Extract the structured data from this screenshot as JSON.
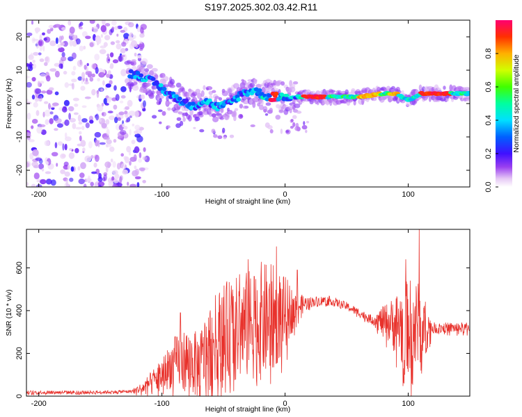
{
  "title": "S197.2025.302.03.42.R11",
  "chart_data": [
    {
      "type": "heatmap",
      "name": "spectrogram",
      "xlabel": "Height of straight line (km)",
      "ylabel": "Frequency (Hz)",
      "xlim": [
        -210,
        150
      ],
      "ylim": [
        -25,
        25
      ],
      "x_ticks": [
        "-200",
        "-100",
        "0",
        "100"
      ],
      "x_tick_values": [
        -200,
        -100,
        0,
        100
      ],
      "y_ticks": [
        "-20",
        "-10",
        "0",
        "10",
        "20"
      ],
      "y_tick_values": [
        -20,
        -10,
        0,
        10,
        20
      ],
      "colorbar": {
        "label": "Normalized spectral amplitude",
        "range": [
          0,
          1
        ],
        "ticks": [
          "0.0",
          "0.2",
          "0.4",
          "0.6",
          "0.8"
        ],
        "tick_values": [
          0.0,
          0.2,
          0.4,
          0.6,
          0.8
        ],
        "colormap": "rainbow (magenta-blue-cyan-green-yellow-red)"
      },
      "ridge_frequency": {
        "x": [
          -125,
          -115,
          -105,
          -95,
          -85,
          -75,
          -65,
          -55,
          -45,
          -35,
          -25,
          -15,
          -5,
          5,
          20,
          40,
          60,
          80,
          90,
          100,
          110,
          130,
          150
        ],
        "y": [
          9,
          8,
          6,
          3,
          1,
          -1,
          1,
          -1,
          0,
          3,
          4,
          2,
          2,
          2,
          2,
          2,
          2,
          3,
          3,
          1,
          3,
          3,
          3
        ]
      },
      "noise_region_x": [
        -210,
        -120
      ]
    },
    {
      "type": "line",
      "name": "snr",
      "xlabel": "Height of straight line (km)",
      "ylabel": "SNR (10 * v/v)",
      "xlim": [
        -210,
        150
      ],
      "ylim": [
        0,
        780
      ],
      "x_ticks": [
        "-200",
        "-100",
        "0",
        "100"
      ],
      "x_tick_values": [
        -200,
        -100,
        0,
        100
      ],
      "y_ticks": [
        "0",
        "200",
        "400",
        "600"
      ],
      "y_tick_values": [
        0,
        200,
        400,
        600
      ],
      "color": "#e8322c",
      "envelope": {
        "x": [
          -210,
          -180,
          -150,
          -125,
          -115,
          -100,
          -90,
          -80,
          -70,
          -60,
          -50,
          -40,
          -30,
          -20,
          -10,
          0,
          10,
          20,
          35,
          50,
          70,
          85,
          95,
          105,
          110,
          120,
          150
        ],
        "baseline": [
          18,
          18,
          18,
          22,
          40,
          100,
          160,
          170,
          140,
          250,
          300,
          310,
          330,
          350,
          360,
          390,
          420,
          440,
          450,
          420,
          360,
          345,
          330,
          320,
          320,
          320,
          320
        ],
        "spread": [
          8,
          8,
          8,
          8,
          30,
          80,
          120,
          150,
          160,
          200,
          230,
          250,
          260,
          280,
          260,
          170,
          60,
          25,
          20,
          20,
          20,
          100,
          200,
          240,
          200,
          25,
          25
        ]
      },
      "peaks": [
        {
          "x": -85,
          "y": 390
        },
        {
          "x": -65,
          "y": 330
        },
        {
          "x": -37,
          "y": 570
        },
        {
          "x": -30,
          "y": 640
        },
        {
          "x": -25,
          "y": 560
        },
        {
          "x": -7,
          "y": 700
        },
        {
          "x": 10,
          "y": 590
        },
        {
          "x": 98,
          "y": 640
        },
        {
          "x": 109,
          "y": 780
        }
      ]
    }
  ]
}
